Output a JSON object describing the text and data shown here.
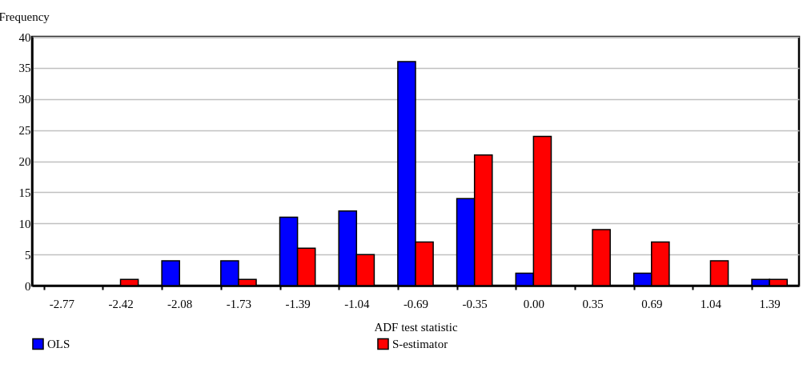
{
  "chart_data": {
    "type": "bar",
    "xlabel": "ADF test statistic",
    "ylabel": "Frequency",
    "categories": [
      "-2.77",
      "-2.42",
      "-2.08",
      "-1.73",
      "-1.39",
      "-1.04",
      "-0.69",
      "-0.35",
      "0.00",
      "0.35",
      "0.69",
      "1.04",
      "1.39"
    ],
    "series": [
      {
        "name": "OLS",
        "color": "#0000ff",
        "values": [
          0,
          0,
          4,
          4,
          11,
          12,
          36,
          14,
          2,
          0,
          2,
          0,
          1
        ]
      },
      {
        "name": "S-estimator",
        "color": "#ff0000",
        "values": [
          0,
          1,
          0,
          1,
          6,
          5,
          7,
          21,
          24,
          9,
          7,
          4,
          1
        ]
      }
    ],
    "ylim": [
      0,
      40
    ],
    "yticks": [
      0,
      5,
      10,
      15,
      20,
      25,
      30,
      35,
      40
    ],
    "grid": "y",
    "legend": "bottom"
  }
}
